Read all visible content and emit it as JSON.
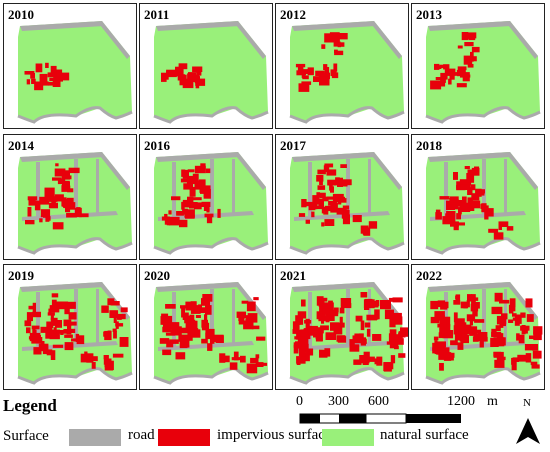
{
  "panels": [
    {
      "year": "2010",
      "stage": 0
    },
    {
      "year": "2011",
      "stage": 0
    },
    {
      "year": "2012",
      "stage": 1
    },
    {
      "year": "2013",
      "stage": 1
    },
    {
      "year": "2014",
      "stage": 2
    },
    {
      "year": "2016",
      "stage": 2
    },
    {
      "year": "2017",
      "stage": 3
    },
    {
      "year": "2018",
      "stage": 3
    },
    {
      "year": "2019",
      "stage": 4
    },
    {
      "year": "2020",
      "stage": 4
    },
    {
      "year": "2021",
      "stage": 5
    },
    {
      "year": "2022",
      "stage": 5
    }
  ],
  "legend": {
    "title": "Legend",
    "surface_label": "Surface",
    "items": [
      {
        "label": "road",
        "color": "#aaaaaa"
      },
      {
        "label": "impervious surface",
        "color": "#e8000b"
      },
      {
        "label": "natural surface",
        "color": "#99f07a"
      }
    ]
  },
  "scale": {
    "ticks": [
      "0",
      "300",
      "600",
      "1200"
    ],
    "unit": "m"
  },
  "north": "N"
}
